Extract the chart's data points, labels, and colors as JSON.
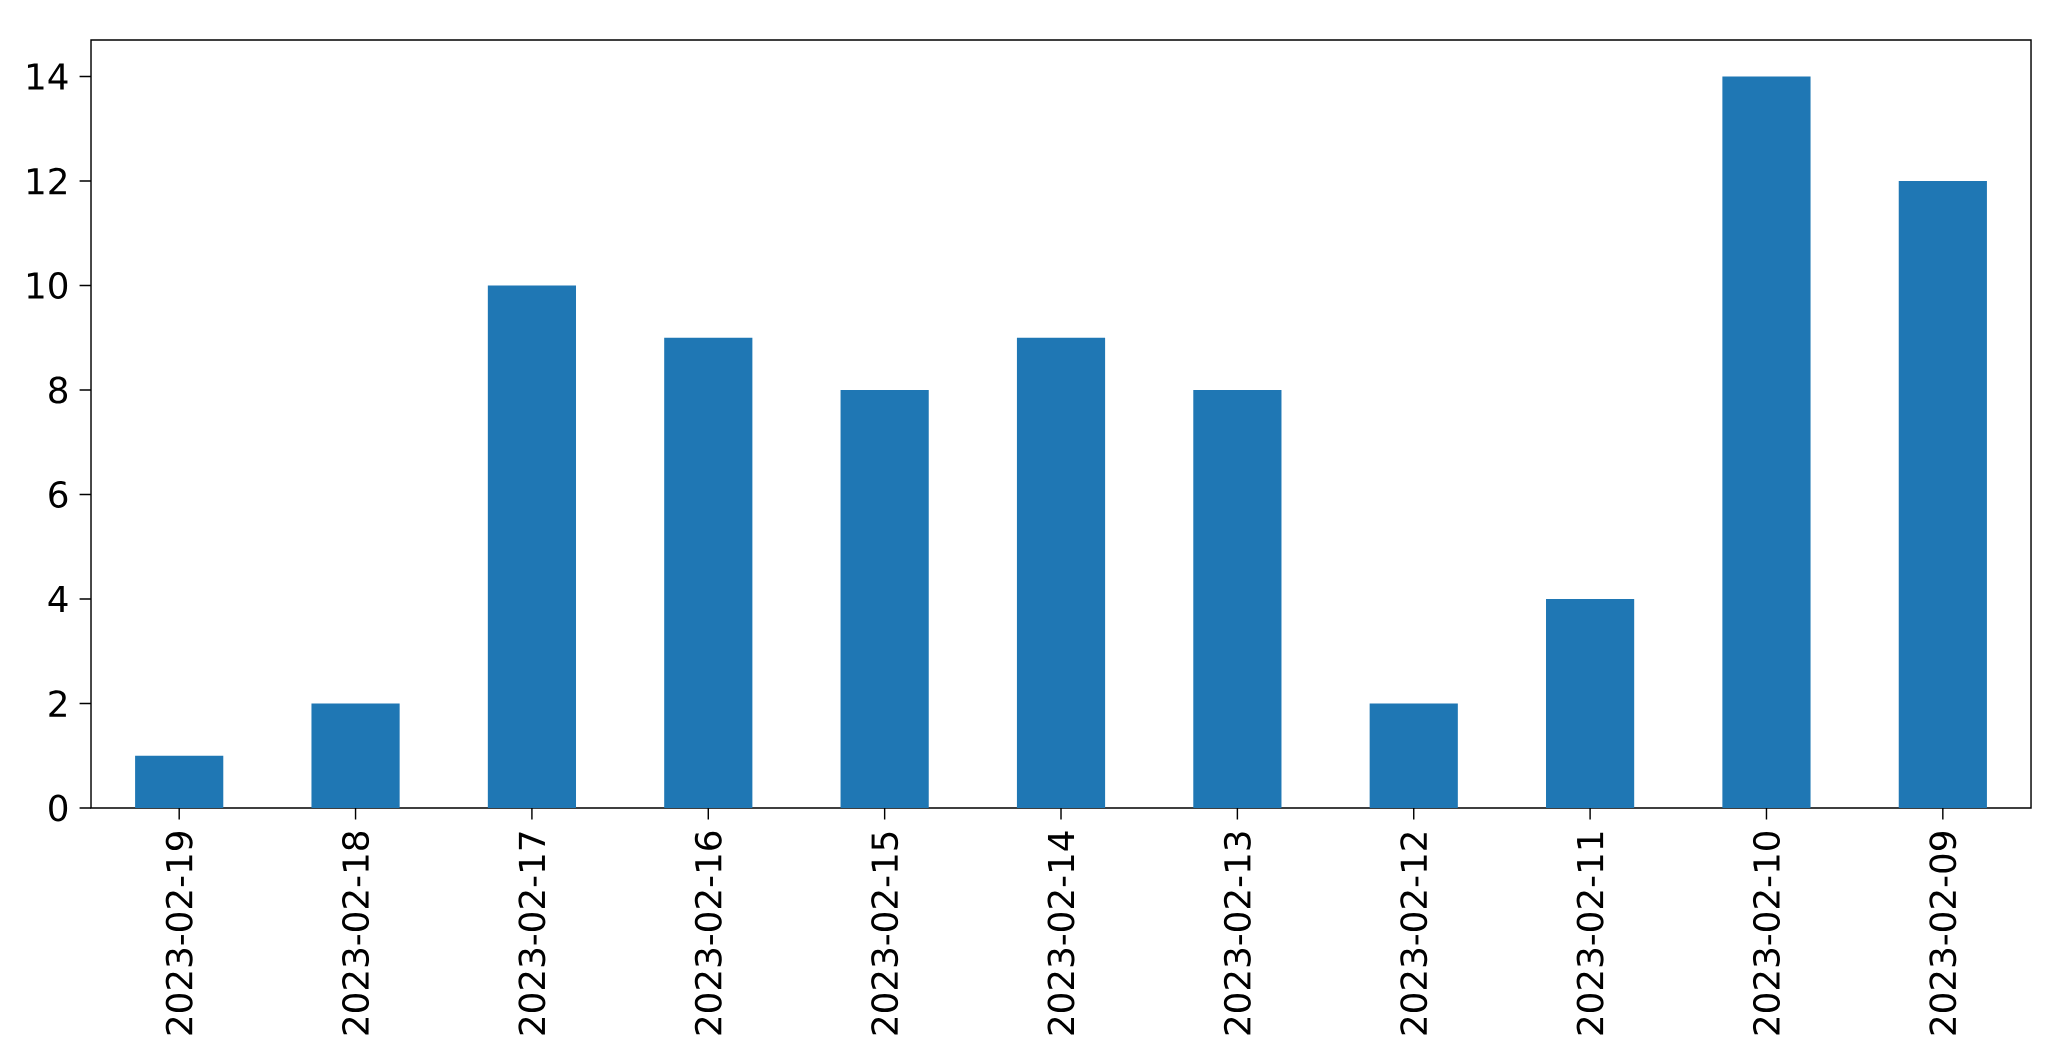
{
  "chart_data": {
    "type": "bar",
    "categories": [
      "2023-02-19",
      "2023-02-18",
      "2023-02-17",
      "2023-02-16",
      "2023-02-15",
      "2023-02-14",
      "2023-02-13",
      "2023-02-12",
      "2023-02-11",
      "2023-02-10",
      "2023-02-09"
    ],
    "values": [
      1,
      2,
      10,
      9,
      8,
      9,
      8,
      2,
      4,
      14,
      12
    ],
    "color": "#1f77b4",
    "ylim": [
      0,
      14.7
    ],
    "yticks": [
      0,
      2,
      4,
      6,
      8,
      10,
      12,
      14
    ],
    "grid": false,
    "legend": false
  }
}
